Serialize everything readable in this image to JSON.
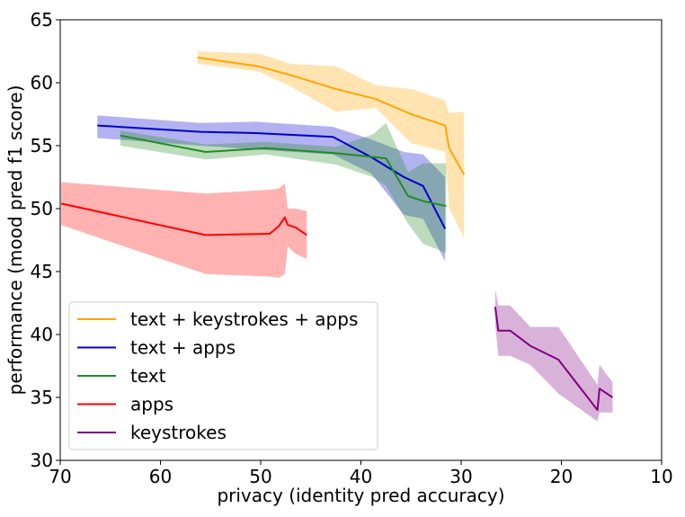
{
  "chart_data": {
    "type": "line",
    "title": "",
    "xlabel": "privacy (identity pred accuracy)",
    "ylabel": "performance (mood pred f1 score)",
    "xlim": [
      70,
      10
    ],
    "ylim": [
      30,
      65
    ],
    "x_ticks": [
      70,
      60,
      50,
      40,
      30,
      20,
      10
    ],
    "y_ticks": [
      30,
      35,
      40,
      45,
      50,
      55,
      60,
      65
    ],
    "grid": false,
    "legend_position": "lower-left",
    "series": [
      {
        "name": "text + keystrokes + apps",
        "color": "#ffa500",
        "x": [
          56.3,
          50.2,
          47,
          42.5,
          38.5,
          35,
          31.6,
          31.2,
          29.7
        ],
        "y": [
          62.0,
          61.3,
          60.6,
          59.5,
          58.7,
          57.5,
          56.6,
          54.8,
          52.7
        ],
        "upper": [
          62.5,
          62.3,
          61.5,
          61.3,
          59.8,
          59.5,
          58.6,
          57.6,
          57.7
        ],
        "lower": [
          61.5,
          60.9,
          59.7,
          57.7,
          58.0,
          55.2,
          54.5,
          50.0,
          47.7
        ]
      },
      {
        "name": "text + apps",
        "color": "#0000cd",
        "x": [
          66.3,
          56,
          50.5,
          42.8,
          39,
          35.7,
          33.8,
          31.6
        ],
        "y": [
          56.6,
          56.1,
          56.0,
          55.7,
          54.1,
          52.5,
          51.8,
          48.4
        ],
        "upper": [
          57.4,
          56.8,
          56.9,
          56.5,
          55.5,
          54.5,
          54.3,
          52.5
        ],
        "lower": [
          55.6,
          55.0,
          54.7,
          54.3,
          52.8,
          49.5,
          49.2,
          45.8
        ]
      },
      {
        "name": "text",
        "color": "#228b22",
        "x": [
          64,
          55.5,
          49.5,
          42.5,
          38.8,
          37.5,
          35.3,
          33.8,
          31.5
        ],
        "y": [
          55.8,
          54.5,
          54.8,
          54.4,
          54.1,
          54.0,
          51.0,
          50.6,
          50.2
        ],
        "upper": [
          56.2,
          55.1,
          55.3,
          54.9,
          55.9,
          56.8,
          52.9,
          53.6,
          53.6
        ],
        "lower": [
          55.0,
          53.9,
          54.3,
          53.5,
          52.5,
          51.8,
          48.8,
          47.2,
          46.5
        ]
      },
      {
        "name": "apps",
        "color": "#ff0000",
        "x": [
          69.9,
          55.5,
          49.1,
          48.2,
          47.6,
          47.3,
          46.5,
          45.4
        ],
        "y": [
          50.4,
          47.9,
          48.0,
          48.6,
          49.3,
          48.7,
          48.5,
          47.9
        ],
        "upper": [
          52.1,
          51.2,
          51.5,
          51.6,
          52.0,
          50.0,
          50.0,
          49.8
        ],
        "lower": [
          48.7,
          44.8,
          44.6,
          44.5,
          44.8,
          47.0,
          46.4,
          46.0
        ]
      },
      {
        "name": "keystrokes",
        "color": "#800080",
        "x": [
          26.6,
          26.3,
          25.1,
          23.1,
          20.3,
          16.4,
          16.2,
          14.9
        ],
        "y": [
          42.2,
          40.3,
          40.3,
          39.1,
          38.0,
          34.0,
          35.7,
          35.0
        ],
        "upper": [
          43.6,
          42.3,
          42.3,
          40.6,
          40.6,
          36.0,
          37.6,
          36.2
        ],
        "lower": [
          40.8,
          38.3,
          38.3,
          37.6,
          35.3,
          33.1,
          33.8,
          33.8
        ]
      }
    ]
  }
}
